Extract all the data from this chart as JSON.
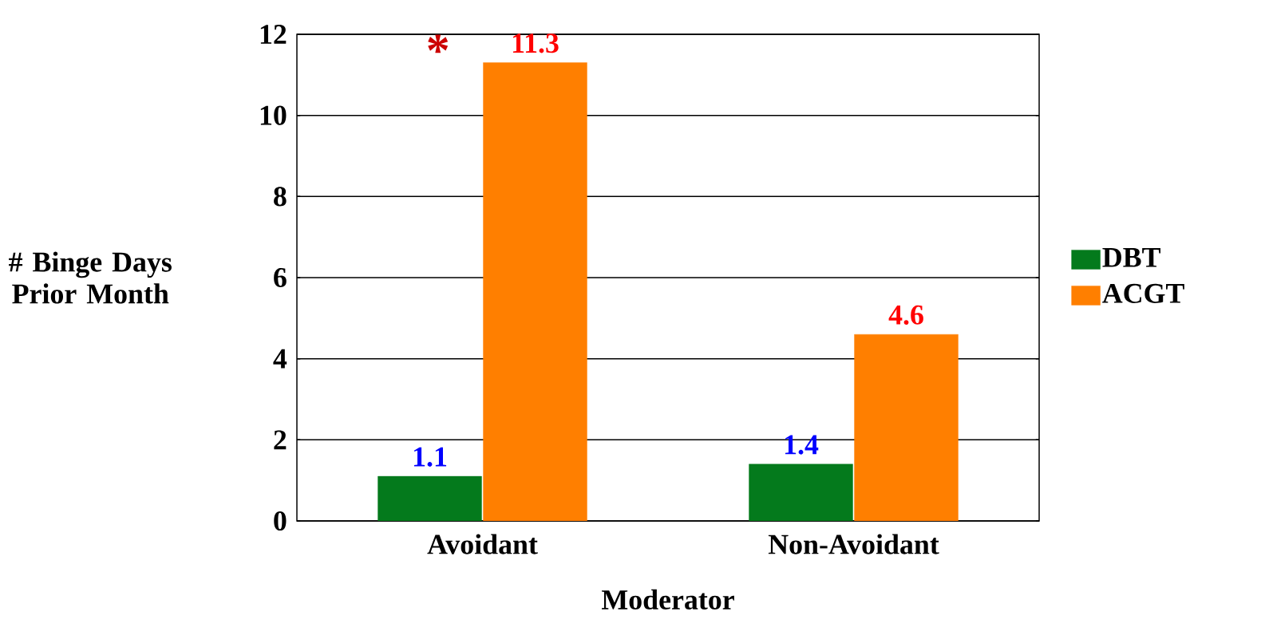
{
  "chart_data": {
    "type": "bar",
    "xlabel": "Moderator",
    "ylabel": "# Binge Days Prior Month",
    "categories": [
      "Avoidant",
      "Non-Avoidant"
    ],
    "series": [
      {
        "name": "DBT",
        "color": "#047a1c",
        "values": [
          1.1,
          1.4
        ]
      },
      {
        "name": "ACGT",
        "color": "#ff7f00",
        "values": [
          11.3,
          4.6
        ]
      }
    ],
    "ylim": [
      0,
      12
    ],
    "yticks": [
      0,
      2,
      4,
      6,
      8,
      10,
      12
    ],
    "grid": "y",
    "legend": "right",
    "data_labels": true,
    "annotations": [
      "*"
    ]
  }
}
